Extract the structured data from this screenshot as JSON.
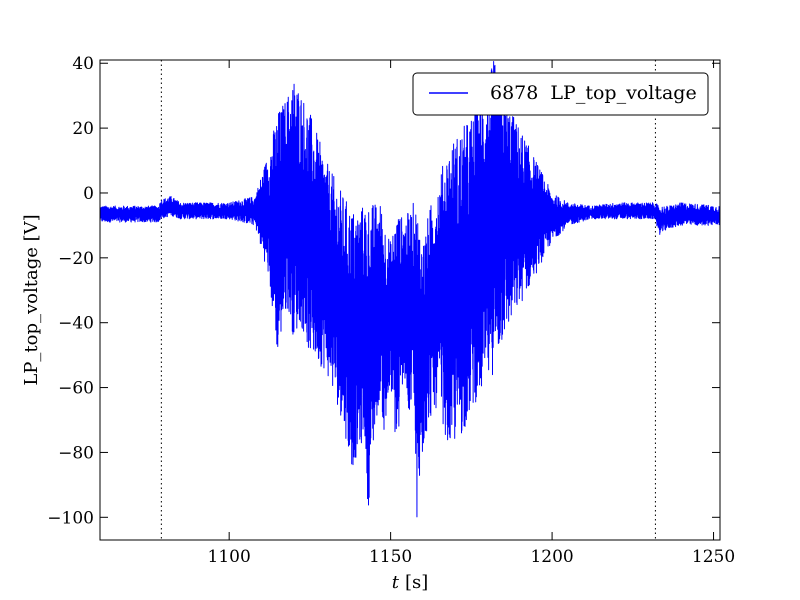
{
  "chart_data": {
    "type": "line",
    "xlabel_italic": "t",
    "xlabel_unit": "[s]",
    "ylabel": "LP_top_voltage [V]",
    "xlim": [
      1060,
      1252
    ],
    "ylim": [
      -107,
      41
    ],
    "xticks": [
      1100,
      1150,
      1200,
      1250
    ],
    "yticks": [
      40,
      20,
      0,
      -20,
      -40,
      -60,
      -80,
      -100
    ],
    "ytick_labels": [
      "40",
      "20",
      "0",
      "−20",
      "−40",
      "−60",
      "−80",
      "−100"
    ],
    "vlines": [
      1079,
      1232
    ],
    "grid": false,
    "legend_position": "top-right",
    "series": [
      {
        "name": "6878  LP_top_voltage",
        "color": "#0000ff",
        "envelope": {
          "x": [
            1060,
            1078,
            1079,
            1082,
            1085,
            1100,
            1108,
            1112,
            1115,
            1118,
            1120,
            1122,
            1125,
            1130,
            1135,
            1138,
            1140,
            1142,
            1143,
            1145,
            1147,
            1148,
            1150,
            1152,
            1154,
            1156,
            1157,
            1158,
            1160,
            1162,
            1165,
            1168,
            1172,
            1176,
            1180,
            1182,
            1185,
            1190,
            1195,
            1200,
            1205,
            1212,
            1220,
            1232,
            1233,
            1236,
            1240,
            1252
          ],
          "upper": [
            -4,
            -4,
            -2,
            -1,
            -3,
            -3,
            -1,
            12,
            25,
            30,
            36,
            32,
            25,
            10,
            0,
            -5,
            -5,
            -3,
            -3,
            -3,
            -3,
            -8,
            -15,
            -5,
            -8,
            -5,
            -3,
            -3,
            -15,
            -5,
            5,
            15,
            20,
            25,
            35,
            41,
            30,
            20,
            10,
            0,
            -3,
            -4,
            -3,
            -3,
            -4,
            -4,
            -3,
            -4
          ],
          "lower": [
            -9,
            -9,
            -8,
            -7,
            -8,
            -8,
            -10,
            -25,
            -50,
            -35,
            -45,
            -40,
            -50,
            -55,
            -70,
            -85,
            -80,
            -75,
            -98,
            -75,
            -60,
            -78,
            -60,
            -82,
            -55,
            -75,
            -55,
            -107,
            -80,
            -70,
            -65,
            -80,
            -75,
            -65,
            -60,
            -55,
            -45,
            -35,
            -25,
            -15,
            -10,
            -8,
            -8,
            -8,
            -13,
            -11,
            -10,
            -10
          ]
        }
      }
    ]
  }
}
